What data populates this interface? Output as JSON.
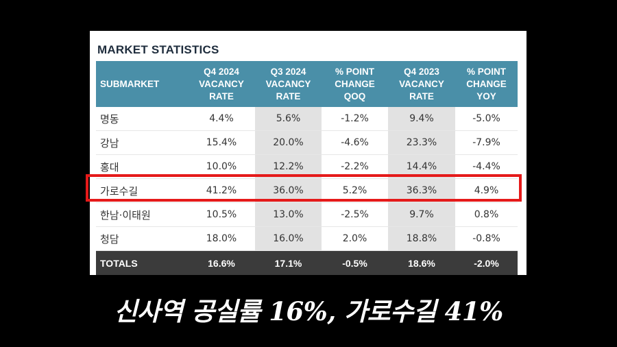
{
  "table": {
    "title": "MARKET STATISTICS",
    "headers": [
      "SUBMARKET",
      "Q4 2024\nVACANCY\nRATE",
      "Q3 2024\nVACANCY\nRATE",
      "% POINT\nCHANGE\nQOQ",
      "Q4 2023\nVACANCY\nRATE",
      "% POINT\nCHANGE\nYOY"
    ],
    "rows": [
      [
        "명동",
        "4.4%",
        "5.6%",
        "-1.2%",
        "9.4%",
        "-5.0%"
      ],
      [
        "강남",
        "15.4%",
        "20.0%",
        "-4.6%",
        "23.3%",
        "-7.9%"
      ],
      [
        "홍대",
        "10.0%",
        "12.2%",
        "-2.2%",
        "14.4%",
        "-4.4%"
      ],
      [
        "가로수길",
        "41.2%",
        "36.0%",
        "5.2%",
        "36.3%",
        "4.9%"
      ],
      [
        "한남·이태원",
        "10.5%",
        "13.0%",
        "-2.5%",
        "9.7%",
        "0.8%"
      ],
      [
        "청담",
        "18.0%",
        "16.0%",
        "2.0%",
        "18.8%",
        "-0.8%"
      ]
    ],
    "totals": [
      "TOTALS",
      "16.6%",
      "17.1%",
      "-0.5%",
      "18.6%",
      "-2.0%"
    ]
  },
  "caption": "신사역 공실률 16%, 가로수길 41%",
  "colors": {
    "header_bg": "#4a8fa8",
    "shade_col": "#e2e2e2",
    "totals_bg": "#3b3b3b",
    "highlight": "#e51a1a"
  }
}
